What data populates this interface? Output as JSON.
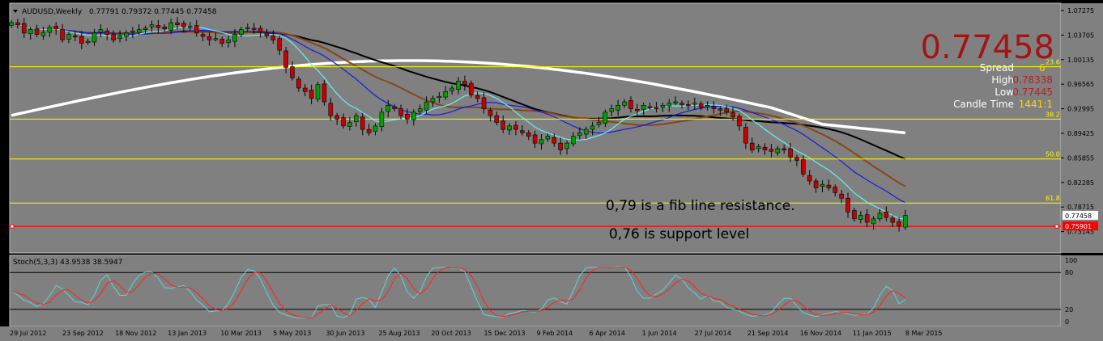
{
  "header": {
    "symbol_label": "AUDUSD,Weekly",
    "ohlc": "0.77791 0.79372 0.77445 0.77458"
  },
  "price_panel": {
    "big_price": "0.77458",
    "spread_label": "Spread",
    "spread_value": "6",
    "high_label": "High",
    "high_value": "0.78338",
    "low_label": "Low",
    "low_value": "0.77445",
    "candle_time_label": "Candle Time",
    "candle_time_value": "1441:1"
  },
  "annotations": {
    "resistance": "0,79 is a fib line resistance.",
    "support": "0,76 is support level"
  },
  "fib_labels": [
    "23.6",
    "38.2",
    "50.0",
    "61.8"
  ],
  "price_tag": "0.77458",
  "support_tag": "0.75901",
  "stoch": {
    "label": "Stoch(5,3,3) 43.9538 38.5947",
    "scale": [
      "100",
      "80",
      "20",
      "0"
    ]
  },
  "colors": {
    "background": "#808080",
    "bull_candle": "#00a000",
    "bear_candle": "#c80000",
    "fib_line": "#ffff00",
    "support_line": "#ff0000",
    "big_price": "#a31515",
    "white_ma": "#ffffff",
    "black_ma": "#000000",
    "brown_ma": "#8b4513",
    "blue_ma": "#1a1adc",
    "cyan_ma": "#5ff5f5",
    "stoch_main": "#5ad6d6",
    "stoch_signal": "#ff2020"
  },
  "chart_data": {
    "type": "candlestick",
    "symbol": "AUDUSD",
    "timeframe": "Weekly",
    "y_ticks": [
      "1.07275",
      "1.03705",
      "1.00135",
      "0.96565",
      "0.92995",
      "0.89425",
      "0.85855",
      "0.82285",
      "0.78715",
      "0.75145"
    ],
    "x_ticks": [
      "29 Jul 2012",
      "23 Sep 2012",
      "18 Nov 2012",
      "13 Jan 2013",
      "10 Mar 2013",
      "5 May 2013",
      "30 Jun 2013",
      "25 Aug 2013",
      "20 Oct 2013",
      "15 Dec 2013",
      "9 Feb 2014",
      "6 Apr 2014",
      "1 Jun 2014",
      "27 Jul 2014",
      "21 Sep 2014",
      "16 Nov 2014",
      "11 Jan 2015",
      "8 Mar 2015"
    ],
    "ylim": [
      0.745,
      1.077
    ],
    "fib_levels": [
      {
        "label": "23.6",
        "price": 0.991
      },
      {
        "label": "38.2",
        "price": 0.915
      },
      {
        "label": "50.0",
        "price": 0.857
      },
      {
        "label": "61.8",
        "price": 0.793
      }
    ],
    "support_level": 0.75901,
    "last_price": 0.77458,
    "closes": [
      1.055,
      1.052,
      1.04,
      1.045,
      1.038,
      1.041,
      1.048,
      1.046,
      1.03,
      1.038,
      1.035,
      1.025,
      1.028,
      1.04,
      1.045,
      1.038,
      1.03,
      1.036,
      1.04,
      1.043,
      1.045,
      1.047,
      1.052,
      1.048,
      1.046,
      1.055,
      1.052,
      1.049,
      1.05,
      1.04,
      1.035,
      1.03,
      1.032,
      1.025,
      1.03,
      1.038,
      1.045,
      1.048,
      1.046,
      1.042,
      1.036,
      1.03,
      1.015,
      0.99,
      0.975,
      0.96,
      0.955,
      0.945,
      0.965,
      0.94,
      0.92,
      0.915,
      0.905,
      0.91,
      0.92,
      0.9,
      0.895,
      0.905,
      0.925,
      0.935,
      0.93,
      0.92,
      0.915,
      0.925,
      0.93,
      0.94,
      0.945,
      0.948,
      0.955,
      0.96,
      0.97,
      0.965,
      0.95,
      0.945,
      0.93,
      0.92,
      0.91,
      0.9,
      0.905,
      0.9,
      0.895,
      0.89,
      0.88,
      0.885,
      0.89,
      0.88,
      0.87,
      0.88,
      0.89,
      0.895,
      0.9,
      0.905,
      0.91,
      0.925,
      0.93,
      0.935,
      0.94,
      0.93,
      0.928,
      0.935,
      0.932,
      0.93,
      0.935,
      0.938,
      0.94,
      0.936,
      0.935,
      0.938,
      0.932,
      0.935,
      0.93,
      0.928,
      0.925,
      0.918,
      0.905,
      0.88,
      0.87,
      0.875,
      0.87,
      0.868,
      0.872,
      0.87,
      0.86,
      0.855,
      0.835,
      0.825,
      0.815,
      0.82,
      0.815,
      0.808,
      0.8,
      0.78,
      0.77,
      0.775,
      0.765,
      0.77,
      0.778,
      0.772,
      0.765,
      0.76,
      0.775
    ]
  }
}
